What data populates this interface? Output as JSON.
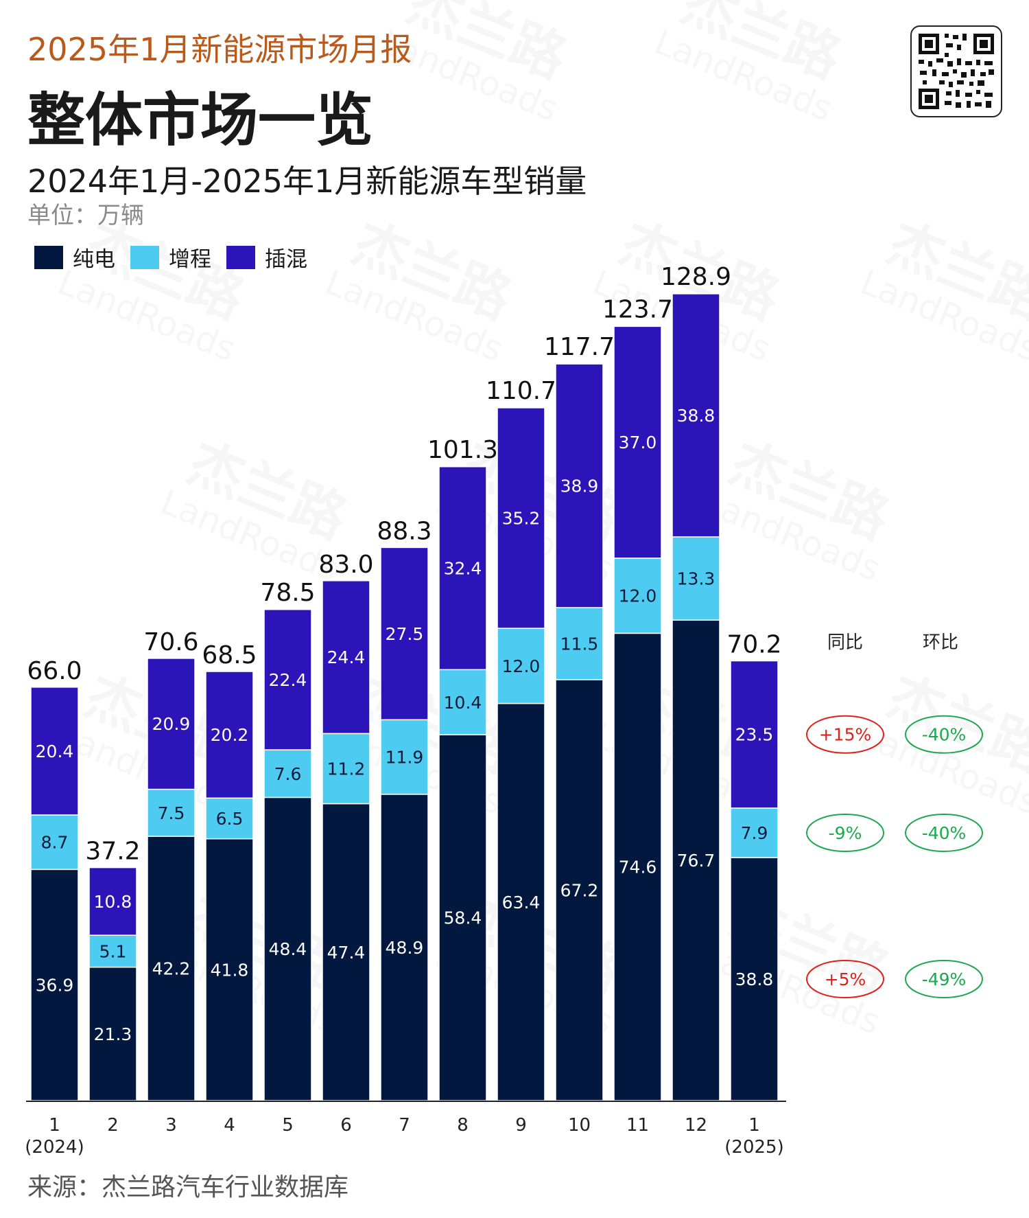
{
  "header": {
    "report_title": "2025年1月新能源市场月报",
    "page_title": "整体市场一览",
    "chart_title": "2024年1月-2025年1月新能源车型销量",
    "unit": "单位：万辆"
  },
  "legend": [
    {
      "label": "纯电",
      "color": "#02183f"
    },
    {
      "label": "增程",
      "color": "#4ecbf0"
    },
    {
      "label": "插混",
      "color": "#2b14b8"
    }
  ],
  "watermark": {
    "cn": "杰兰路",
    "en": "LandRoads"
  },
  "source": "来源：杰兰路汽车行业数据库",
  "chart_data": {
    "type": "bar",
    "stacked": true,
    "title": "2024年1月-2025年1月新能源车型销量",
    "ylabel": "单位：万辆",
    "categories": [
      {
        "month": "1",
        "year": "(2024)"
      },
      {
        "month": "2",
        "year": ""
      },
      {
        "month": "3",
        "year": ""
      },
      {
        "month": "4",
        "year": ""
      },
      {
        "month": "5",
        "year": ""
      },
      {
        "month": "6",
        "year": ""
      },
      {
        "month": "7",
        "year": ""
      },
      {
        "month": "8",
        "year": ""
      },
      {
        "month": "9",
        "year": ""
      },
      {
        "month": "10",
        "year": ""
      },
      {
        "month": "11",
        "year": ""
      },
      {
        "month": "12",
        "year": ""
      },
      {
        "month": "1",
        "year": "(2025)"
      }
    ],
    "series": [
      {
        "name": "纯电",
        "color": "#02183f",
        "values": [
          "36.9",
          "21.3",
          "42.2",
          "41.8",
          "48.4",
          "47.4",
          "48.9",
          "58.4",
          "63.4",
          "67.2",
          "74.6",
          "76.7",
          "38.8"
        ]
      },
      {
        "name": "增程",
        "color": "#4ecbf0",
        "values": [
          "8.7",
          "5.1",
          "7.5",
          "6.5",
          "7.6",
          "11.2",
          "11.9",
          "10.4",
          "12.0",
          "11.5",
          "12.0",
          "13.3",
          "7.9"
        ]
      },
      {
        "name": "插混",
        "color": "#2b14b8",
        "values": [
          "20.4",
          "10.8",
          "20.9",
          "20.2",
          "22.4",
          "24.4",
          "27.5",
          "32.4",
          "35.2",
          "38.9",
          "37.0",
          "38.8",
          "23.5"
        ]
      }
    ],
    "totals": [
      "66.0",
      "37.2",
      "70.6",
      "68.5",
      "78.5",
      "83.0",
      "88.3",
      "101.3",
      "110.7",
      "117.7",
      "123.7",
      "128.9",
      "70.2"
    ],
    "ylim": [
      0,
      128.9
    ],
    "comparison": {
      "headers": {
        "yoy": "同比",
        "mom": "环比"
      },
      "rows": [
        {
          "series": "插混",
          "yoy": "+15%",
          "yoy_trend": "up",
          "mom": "-40%",
          "mom_trend": "down"
        },
        {
          "series": "增程",
          "yoy": "-9%",
          "yoy_trend": "down",
          "mom": "-40%",
          "mom_trend": "down"
        },
        {
          "series": "纯电",
          "yoy": "+5%",
          "yoy_trend": "up",
          "mom": "-49%",
          "mom_trend": "down"
        }
      ],
      "colors": {
        "up": "#e0201b",
        "down": "#1da850"
      }
    }
  }
}
